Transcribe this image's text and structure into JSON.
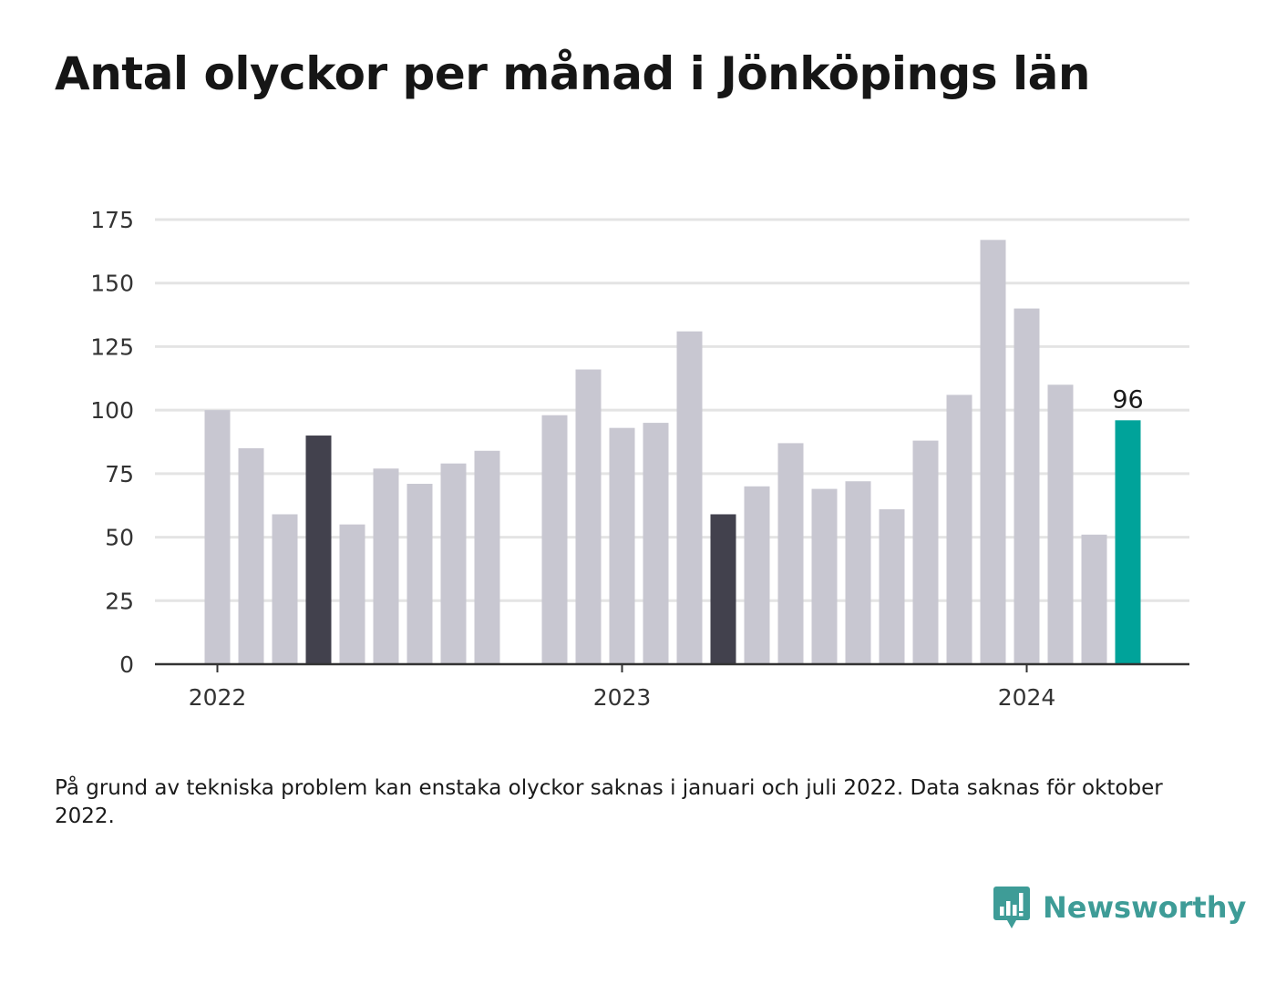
{
  "title": "Antal olyckor per månad i Jönköpings län",
  "footnote": "På grund av tekniska problem kan enstaka olyckor saknas i januari och juli 2022. Data saknas för oktober 2022.",
  "brand": {
    "name": "Newsworthy",
    "icon": "newsworthy-logo-icon",
    "color": "#3e9c97"
  },
  "colors": {
    "bar_default": "#c8c7d1",
    "bar_highlight_dark": "#42414d",
    "bar_current": "#00a39a",
    "gridline": "#e4e4e4",
    "axis": "#333333"
  },
  "chart_data": {
    "type": "bar",
    "title": "Antal olyckor per månad i Jönköpings län",
    "xlabel": "",
    "ylabel": "",
    "ylim": [
      0,
      175
    ],
    "yticks": [
      0,
      25,
      50,
      75,
      100,
      125,
      150,
      175
    ],
    "grid": true,
    "legend": "none",
    "x_tick_labels": [
      {
        "label": "2022",
        "at": "2022-01"
      },
      {
        "label": "2023",
        "at": "2023-01"
      },
      {
        "label": "2024",
        "at": "2024-01"
      }
    ],
    "categories": [
      "2022-01",
      "2022-02",
      "2022-03",
      "2022-04",
      "2022-05",
      "2022-06",
      "2022-07",
      "2022-08",
      "2022-09",
      "2022-10",
      "2022-11",
      "2022-12",
      "2023-01",
      "2023-02",
      "2023-03",
      "2023-04",
      "2023-05",
      "2023-06",
      "2023-07",
      "2023-08",
      "2023-09",
      "2023-10",
      "2023-11",
      "2023-12",
      "2024-01",
      "2024-02",
      "2024-03",
      "2024-04"
    ],
    "values": [
      100,
      85,
      59,
      90,
      55,
      77,
      71,
      79,
      84,
      null,
      98,
      116,
      93,
      95,
      131,
      59,
      70,
      87,
      69,
      72,
      61,
      88,
      106,
      167,
      140,
      110,
      51,
      96
    ],
    "highlights": {
      "2022-04": "dark",
      "2023-04": "dark",
      "2024-04": "current"
    },
    "data_labels": [
      {
        "at": "2024-04",
        "text": "96"
      }
    ]
  }
}
